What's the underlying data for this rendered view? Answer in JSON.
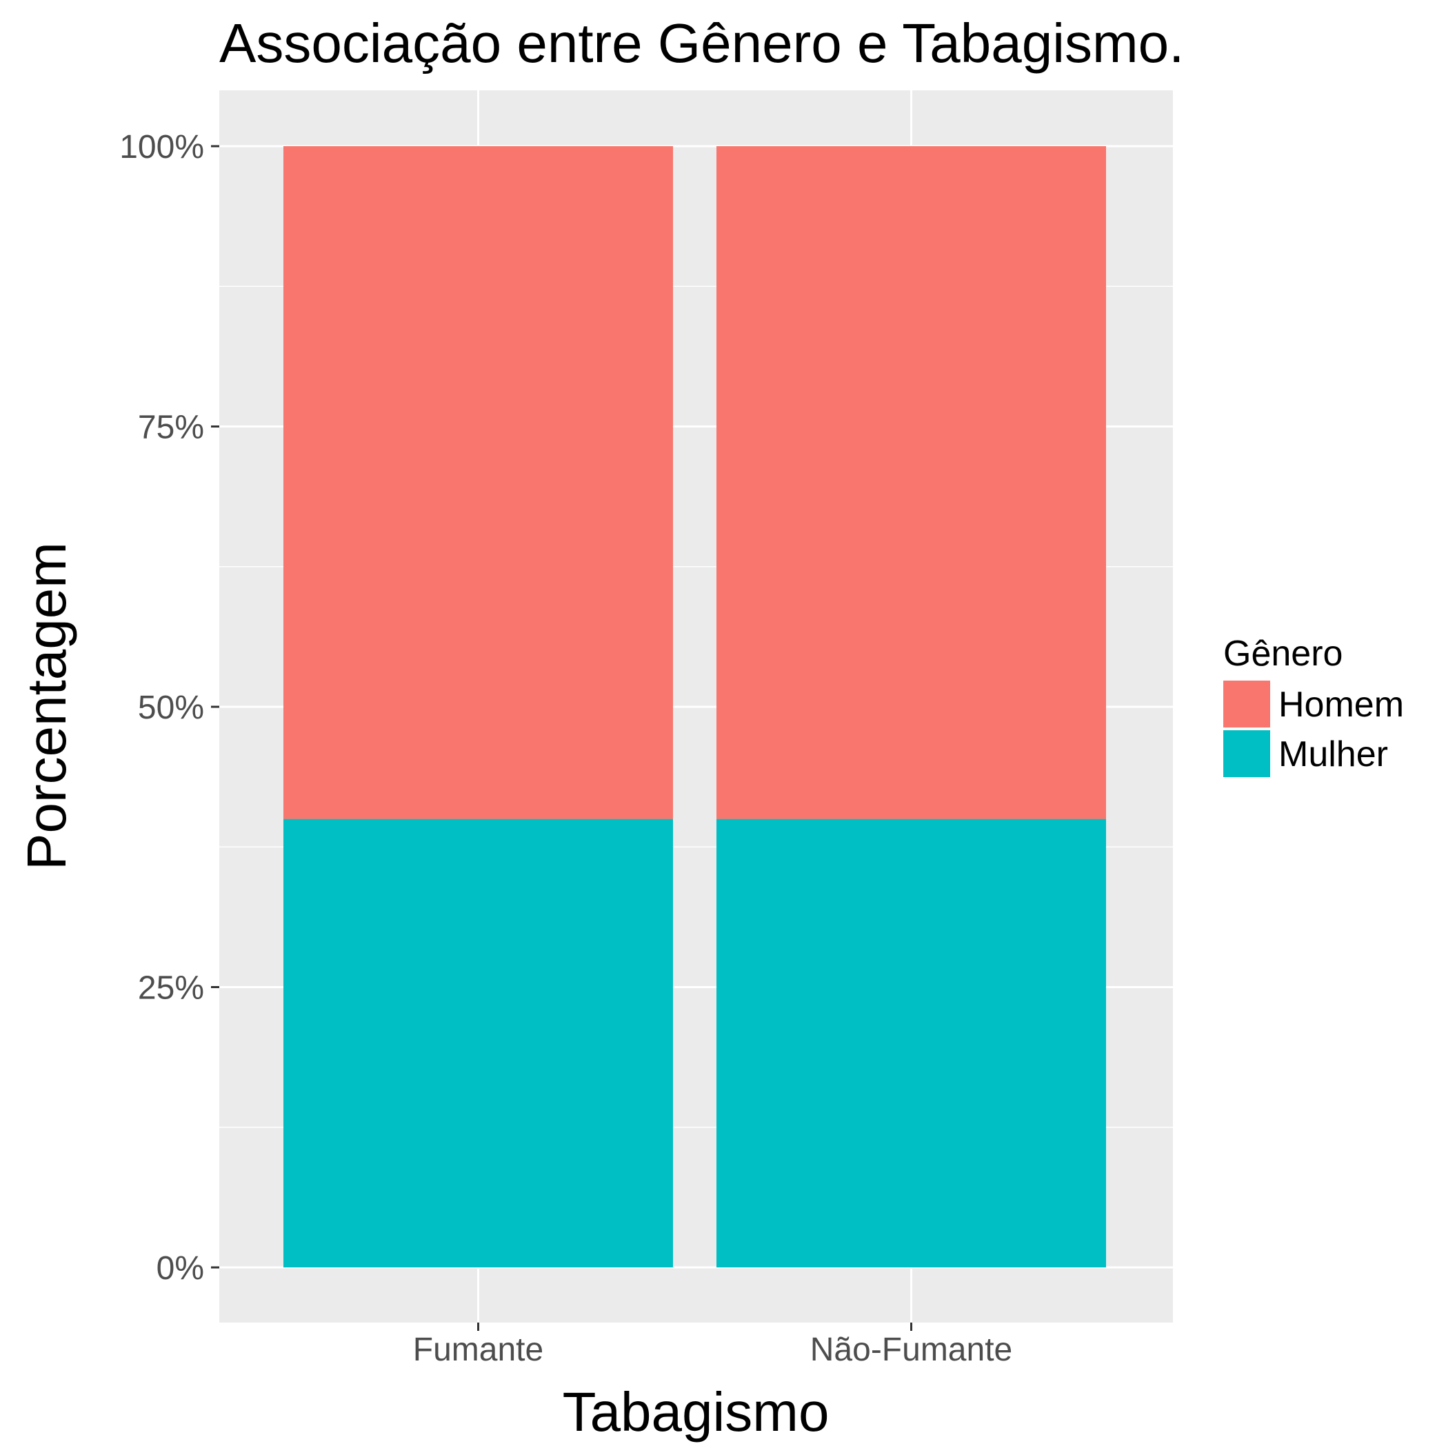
{
  "chart_data": {
    "type": "bar",
    "stacked": true,
    "title": "Associação entre Gênero e Tabagismo.",
    "xlabel": "Tabagismo",
    "ylabel": "Porcentagem",
    "categories": [
      "Fumante",
      "Não-Fumante"
    ],
    "series": [
      {
        "name": "Homem",
        "values": [
          60,
          60
        ],
        "color": "#F8766D"
      },
      {
        "name": "Mulher",
        "values": [
          40,
          40
        ],
        "color": "#00BFC4"
      }
    ],
    "stack_order_bottom_to_top": [
      "Mulher",
      "Homem"
    ],
    "ylim": [
      0,
      100
    ],
    "yticks": [
      0,
      25,
      50,
      75,
      100
    ],
    "ytick_labels": [
      "0%",
      "25%",
      "50%",
      "75%",
      "100%"
    ],
    "grid": true,
    "panel_background": "#EBEBEB",
    "legend": {
      "title": "Gênero",
      "placement": "right"
    }
  }
}
